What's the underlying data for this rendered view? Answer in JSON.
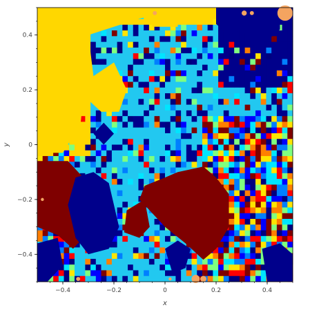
{
  "chart_data": {
    "type": "heatmap",
    "title": "",
    "xlabel": "x",
    "ylabel": "y",
    "xlim": [
      -0.5,
      0.5
    ],
    "ylim": [
      -0.5,
      0.5
    ],
    "x_ticks": [
      -0.4,
      -0.2,
      0,
      0.2,
      0.4
    ],
    "y_ticks": [
      -0.4,
      -0.2,
      0,
      0.2,
      0.4
    ],
    "x_tick_labels": [
      "−0.4",
      "−0.2",
      "0",
      "0.2",
      "0.4"
    ],
    "y_tick_labels": [
      "−0.4",
      "−0.2",
      "0",
      "0.2",
      "0.4"
    ],
    "grid": false,
    "legend": "none",
    "colormap": "jet",
    "palette": [
      "#00007f",
      "#0000ff",
      "#007fff",
      "#00e5ff",
      "#7fff7f",
      "#ffe500",
      "#ff7f00",
      "#ff0000",
      "#7f0000"
    ],
    "base_colors": {
      "navy": "#00008b",
      "light_cyan": "#22c8f0",
      "yellow": "#ffd700",
      "maroon": "#7f0000",
      "salmon": "#f4a460"
    },
    "regions": [
      {
        "name": "yellow-upper-left",
        "color": "yellow",
        "points": [
          [
            -0.5,
            0.5
          ],
          [
            -0.2,
            0.5
          ],
          [
            -0.2,
            0.43
          ],
          [
            -0.3,
            0.4
          ],
          [
            -0.28,
            0.25
          ],
          [
            -0.2,
            0.3
          ],
          [
            -0.15,
            0.2
          ],
          [
            -0.18,
            0.12
          ],
          [
            -0.25,
            0.12
          ],
          [
            -0.32,
            0.18
          ],
          [
            -0.33,
            0.08
          ],
          [
            -0.38,
            0.0
          ],
          [
            -0.4,
            -0.03
          ],
          [
            -0.5,
            -0.03
          ]
        ]
      },
      {
        "name": "yellow-top-band",
        "color": "yellow",
        "points": [
          [
            -0.2,
            0.5
          ],
          [
            0.2,
            0.5
          ],
          [
            0.2,
            0.47
          ],
          [
            0.1,
            0.47
          ],
          [
            0.0,
            0.48
          ],
          [
            -0.1,
            0.46
          ],
          [
            -0.2,
            0.43
          ]
        ]
      },
      {
        "name": "yellow-patch-top-center",
        "color": "yellow",
        "points": [
          [
            -0.05,
            0.5
          ],
          [
            0.05,
            0.5
          ],
          [
            0.05,
            0.43
          ],
          [
            -0.05,
            0.43
          ]
        ]
      },
      {
        "name": "maroon-center",
        "color": "maroon",
        "points": [
          [
            -0.08,
            -0.15
          ],
          [
            0.0,
            -0.12
          ],
          [
            0.05,
            -0.1
          ],
          [
            0.15,
            -0.08
          ],
          [
            0.2,
            -0.12
          ],
          [
            0.25,
            -0.18
          ],
          [
            0.25,
            -0.3
          ],
          [
            0.2,
            -0.38
          ],
          [
            0.15,
            -0.42
          ],
          [
            0.08,
            -0.36
          ],
          [
            0.0,
            -0.3
          ],
          [
            -0.05,
            -0.25
          ],
          [
            -0.1,
            -0.2
          ]
        ]
      },
      {
        "name": "maroon-left-mid",
        "color": "maroon",
        "points": [
          [
            -0.5,
            -0.06
          ],
          [
            -0.38,
            -0.06
          ],
          [
            -0.32,
            -0.12
          ],
          [
            -0.28,
            -0.2
          ],
          [
            -0.3,
            -0.32
          ],
          [
            -0.36,
            -0.38
          ],
          [
            -0.42,
            -0.33
          ],
          [
            -0.5,
            -0.3
          ]
        ]
      },
      {
        "name": "maroon-lower-center",
        "color": "maroon",
        "points": [
          [
            -0.15,
            -0.24
          ],
          [
            -0.08,
            -0.2
          ],
          [
            -0.06,
            -0.3
          ],
          [
            -0.1,
            -0.34
          ],
          [
            -0.16,
            -0.32
          ]
        ]
      },
      {
        "name": "navy-center-left",
        "color": "navy",
        "points": [
          [
            -0.35,
            -0.12
          ],
          [
            -0.28,
            -0.1
          ],
          [
            -0.22,
            -0.14
          ],
          [
            -0.2,
            -0.22
          ],
          [
            -0.18,
            -0.3
          ],
          [
            -0.22,
            -0.38
          ],
          [
            -0.3,
            -0.4
          ],
          [
            -0.35,
            -0.34
          ],
          [
            -0.38,
            -0.22
          ]
        ]
      },
      {
        "name": "navy-top-right",
        "color": "navy",
        "points": [
          [
            0.2,
            0.5
          ],
          [
            0.45,
            0.5
          ],
          [
            0.45,
            0.42
          ],
          [
            0.4,
            0.38
          ],
          [
            0.35,
            0.36
          ],
          [
            0.3,
            0.42
          ],
          [
            0.25,
            0.4
          ],
          [
            0.2,
            0.44
          ]
        ]
      },
      {
        "name": "navy-center-small",
        "color": "navy",
        "points": [
          [
            -0.28,
            0.04
          ],
          [
            -0.24,
            0.08
          ],
          [
            -0.2,
            0.04
          ],
          [
            -0.24,
            0.0
          ]
        ]
      },
      {
        "name": "navy-lower-mid",
        "color": "navy",
        "points": [
          [
            0.0,
            -0.38
          ],
          [
            0.05,
            -0.35
          ],
          [
            0.1,
            -0.38
          ],
          [
            0.08,
            -0.45
          ],
          [
            0.03,
            -0.47
          ]
        ]
      },
      {
        "name": "navy-left-bottom",
        "color": "navy",
        "points": [
          [
            -0.5,
            -0.36
          ],
          [
            -0.42,
            -0.34
          ],
          [
            -0.4,
            -0.44
          ],
          [
            -0.46,
            -0.5
          ],
          [
            -0.5,
            -0.5
          ]
        ]
      },
      {
        "name": "navy-right-bottom",
        "color": "navy",
        "points": [
          [
            0.38,
            -0.38
          ],
          [
            0.45,
            -0.36
          ],
          [
            0.5,
            -0.4
          ],
          [
            0.5,
            -0.5
          ],
          [
            0.4,
            -0.5
          ]
        ]
      }
    ],
    "markers": [
      {
        "x": 0.12,
        "y": -0.49,
        "r": 0.016,
        "color": "salmon"
      },
      {
        "x": 0.15,
        "y": -0.49,
        "r": 0.012,
        "color": "salmon"
      },
      {
        "x": 0.47,
        "y": 0.48,
        "r": 0.03,
        "color": "salmon"
      },
      {
        "x": 0.31,
        "y": 0.48,
        "r": 0.01,
        "color": "salmon"
      },
      {
        "x": 0.34,
        "y": 0.48,
        "r": 0.008,
        "color": "salmon"
      },
      {
        "x": -0.04,
        "y": 0.48,
        "r": 0.008,
        "color": "salmon"
      },
      {
        "x": -0.34,
        "y": -0.49,
        "r": 0.008,
        "color": "salmon"
      },
      {
        "x": -0.48,
        "y": -0.2,
        "r": 0.006,
        "color": "salmon"
      },
      {
        "x": 0.02,
        "y": -0.49,
        "r": 0.006,
        "color": "salmon"
      }
    ]
  }
}
